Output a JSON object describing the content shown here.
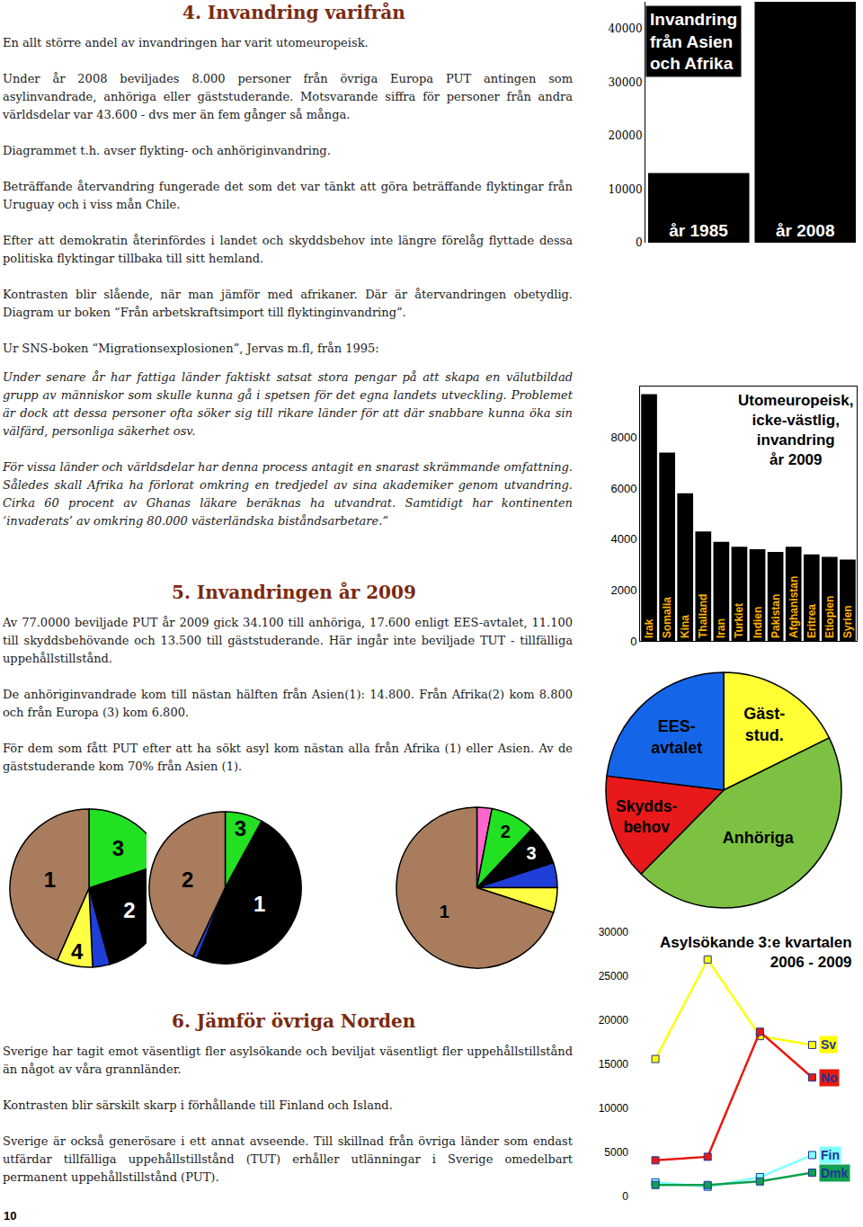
{
  "page_number": "10",
  "sections": [
    {
      "heading": "4. Invandring varifrån",
      "paragraphs": [
        "En allt större andel av invandringen har varit utomeuropeisk.",
        "Under år 2008 beviljades 8.000 personer från övriga Europa PUT antingen som asylinvandrade, anhöriga eller gäststuderande. Motsvarande siffra för personer från andra världsdelar var 43.600 - dvs mer än fem gånger så många.",
        "Diagrammet t.h. avser flykting- och anhöriginvandring.",
        "Beträffande återvandring fungerade det som det var tänkt att göra beträffande flyktingar från Uruguay och i viss mån Chile.",
        "Efter att demokratin återinfördes i landet och skyddsbehov inte längre förelåg flyttade dessa politiska flyktingar tillbaka till sitt hemland.",
        "Kontrasten blir slående, när man jämför med afrikaner. Där är återvandringen obetydlig. Diagram ur boken “Från arbetskraftsimport till flyktinginvandring”.",
        "Ur SNS-boken “Migrationsexplosionen”, Jervas m.fl, från 1995:"
      ],
      "quote": [
        "Under senare år har fattiga länder faktiskt satsat stora pengar på att skapa en välutbildad grupp av människor som skulle kunna gå i spetsen för det egna landets utveckling. Problemet är dock att dessa personer ofta söker sig till rikare länder för att där snabbare kunna öka sin välfärd, personliga säkerhet osv.",
        "För vissa länder och världsdelar har denna process antagit en snarast skrämmande omfattning. Således skall Afrika ha förlorat omkring en tredjedel av sina akademiker genom utvandring. Cirka 60 procent av Ghanas läkare beräknas ha utvandrat. Samtidigt har kontinenten ‘invaderats’ av omkring 80.000 västerländska biståndsarbetare.”"
      ]
    },
    {
      "heading": "5. Invandringen år 2009",
      "paragraphs": [
        "Av 77.0000 beviljade PUT år 2009 gick 34.100 till anhöriga, 17.600 enligt EES-avtalet, 11.100 till skyddsbehövande och 13.500 till gäststuderande. Här ingår inte beviljade TUT - tillfälliga uppehållstillstånd.",
        "De anhöriginvandrade kom till nästan hälften från Asien(1): 14.800. Från Afrika(2) kom 8.800 och från Europa (3) kom 6.800.",
        "För dem som fått PUT efter att ha sökt asyl kom nästan alla från Afrika (1) eller Asien. Av de gäststuderande kom 70% från Asien (1)."
      ]
    },
    {
      "heading": "6. Jämför övriga Norden",
      "paragraphs": [
        "Sverige har tagit emot väsentligt fler asylsökande och beviljat väsentligt fler uppehållstillstånd än något av våra grannländer.",
        "Kontrasten blir särskilt skarp i förhållande till Finland och Island.",
        "Sverige är också generösare i ett annat avseende. Till skillnad från övriga länder som endast utfärdar tillfälliga uppehållstillstånd (TUT) erhåller utlänningar i Sverige omedelbart permanent uppehållstillstånd (PUT)."
      ]
    }
  ],
  "chart_data": [
    {
      "type": "bar",
      "title": "Invandring\nfrån Asien\noch Afrika",
      "categories": [
        "år 1985",
        "år 2008"
      ],
      "values": [
        13000,
        45000
      ],
      "color": "#000000",
      "ylim": [
        0,
        45000
      ],
      "yticks": [
        0,
        10000,
        20000,
        30000,
        40000
      ],
      "grid": false,
      "tick_labels": "y"
    },
    {
      "type": "bar",
      "title": "Utomeuropeisk,\nicke-västlig,\ninvandring\når 2009",
      "categories": [
        "Irak",
        "Somalia",
        "Kina",
        "Thailand",
        "Iran",
        "Turkiet",
        "Indien",
        "Pakistan",
        "Afghanistan",
        "Eritrea",
        "Etiopien",
        "Syrien"
      ],
      "values": [
        9700,
        7400,
        5800,
        4300,
        3900,
        3700,
        3600,
        3500,
        3700,
        3400,
        3300,
        3200
      ],
      "color": "#000000",
      "ylim": [
        0,
        10000
      ],
      "yticks": [
        0,
        2000,
        4000,
        6000,
        8000
      ],
      "grid": false,
      "tick_labels": "y"
    },
    {
      "type": "pie",
      "labels": [
        "Gäst-\nstud.",
        "Anhöriga",
        "Skydds-\nbehov",
        "EES-\navtalet"
      ],
      "values": [
        13500,
        34100,
        11100,
        17600
      ],
      "colors": [
        "#ffff33",
        "#7dc142",
        "#e8191b",
        "#1565e8"
      ]
    },
    {
      "type": "pie",
      "labels": [
        "3",
        "2",
        null,
        "4",
        "1"
      ],
      "values": [
        6800,
        8800,
        1200,
        2500,
        14800
      ],
      "colors": [
        "#22e022",
        "#000000",
        "#1f3fd8",
        "#ffff44",
        "#a87c5c"
      ]
    },
    {
      "type": "pie",
      "labels": [
        "3",
        "1",
        null,
        "2"
      ],
      "values": [
        8,
        48,
        1,
        43
      ],
      "colors": [
        "#22e022",
        "#000000",
        "#1f3fd8",
        "#a87c5c"
      ]
    },
    {
      "type": "pie",
      "labels": [
        null,
        "2",
        "3",
        null,
        null,
        "1"
      ],
      "values": [
        3,
        9,
        8,
        5,
        5,
        70
      ],
      "colors": [
        "#ff66cc",
        "#22e022",
        "#000000",
        "#1f3fd8",
        "#ffff44",
        "#a87c5c"
      ]
    },
    {
      "type": "line",
      "title": "Asylsökande 3:e kvartalen\n2006 - 2009",
      "categories": [
        null,
        null,
        null,
        null
      ],
      "series": [
        {
          "name": "Sv",
          "color": "#ffff00",
          "values": [
            15600,
            26900,
            18200,
            17200
          ]
        },
        {
          "name": "No",
          "color": "#e8190e",
          "values": [
            4100,
            4500,
            18700,
            13500
          ]
        },
        {
          "name": "Fin",
          "color": "#80ffff",
          "values": [
            1600,
            1100,
            2200,
            4700
          ]
        },
        {
          "name": "Dmk",
          "color": "#10a050",
          "values": [
            1300,
            1300,
            1700,
            2700
          ]
        }
      ],
      "ylim": [
        0,
        30000
      ],
      "yticks": [
        0,
        5000,
        10000,
        15000,
        20000,
        25000,
        30000
      ],
      "grid": false,
      "tick_labels": "y",
      "marker": "square"
    }
  ]
}
